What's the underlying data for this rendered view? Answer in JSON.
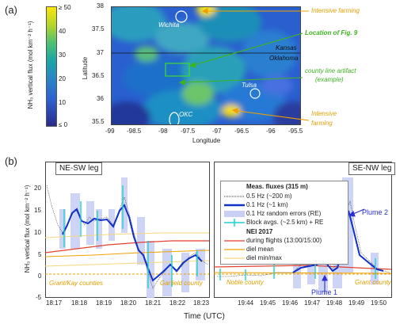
{
  "panel_a": {
    "tag": "(a)",
    "colorbar": {
      "label": "NH₃ vertical flux (mol km⁻² h⁻¹)",
      "max_label": "≥ 50",
      "ticks": [
        "40",
        "30",
        "20",
        "10"
      ],
      "min_label": "≤ 0"
    },
    "map": {
      "xlabel": "Longitude",
      "ylabel": "Latitude",
      "xticks": [
        "-99",
        "-98.5",
        "-98",
        "-97.5",
        "-97",
        "-96.5",
        "-96",
        "-95.5"
      ],
      "yticks": [
        "38",
        "37.5",
        "37",
        "36.5",
        "36",
        "35.5"
      ],
      "cities": [
        "Wichita",
        "Tulsa",
        "OKC"
      ],
      "states": [
        "Kansas",
        "Oklahoma"
      ]
    },
    "annotations": {
      "farming_top": "Intensive farming",
      "fig9": "Location of Fig. 9",
      "county_artifact_1": "county line artifact",
      "county_artifact_2": "(example)",
      "farming_bottom_1": "Intensive",
      "farming_bottom_2": "farming"
    }
  },
  "panel_b": {
    "tag": "(b)",
    "ylabel": "NH₃ vertical flux (mol km⁻² h⁻¹)",
    "xlabel": "Time (UTC)",
    "left": {
      "title": "NE-SW leg",
      "xticks": [
        "18:17",
        "18:18",
        "18:19",
        "18:20",
        "18:21",
        "18:22",
        "18:23"
      ],
      "yticks": [
        "20",
        "15",
        "10",
        "5",
        "0",
        "-5"
      ],
      "county_left": "Grant/Kay counties",
      "county_right": "Garfield county"
    },
    "right": {
      "title": "SE-NW leg",
      "xticks": [
        "19:44",
        "19:45",
        "19:46",
        "19:47",
        "19:48",
        "19:49",
        "19:50"
      ],
      "county_left": "Noble county",
      "county_right": "Grant county",
      "plume1": "Plume 1",
      "plume2": "Plume 2"
    },
    "legend": {
      "header1": "Meas. fluxes (315 m)",
      "items1": [
        "0.5 Hz (~200 m)",
        "0.1 Hz (~1 km)",
        "0.1 Hz random errors (RE)",
        "Block avgs. (~2.5 km) + RE"
      ],
      "header2": "NEI 2017",
      "items2": [
        "during flights (13:00/15:00)",
        "diel mean",
        "diel min/max"
      ]
    }
  },
  "colors": {
    "orange_text": "#e0a000",
    "green_text": "#3fb320",
    "nei_red": "#e2422f",
    "diel_mean": "#f0a000",
    "diel_minmax": "#f7d67a",
    "flux_blue": "#1030c8",
    "block_cyan": "#20d0d0"
  }
}
